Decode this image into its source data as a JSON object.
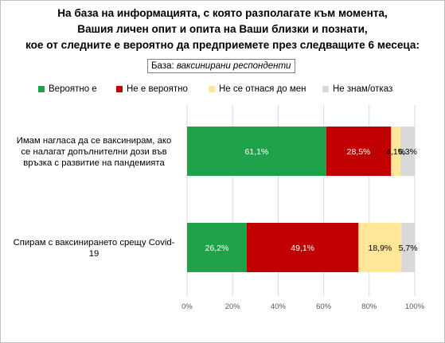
{
  "title_lines": [
    "На база на информацията, с която разполагате към момента,",
    "Вашия личен опит и опита на Ваши близки и познати,",
    "кое от следните е вероятно да предприемете през следващите 6 месеца:"
  ],
  "base": {
    "label": "База:",
    "value": "ваксинирани респонденти"
  },
  "chart_data": {
    "type": "bar",
    "orientation": "horizontal",
    "stacked": true,
    "categories": [
      "Имам нагласа да се ваксинирам, ако се налагат допълнителни дози във връзка с развитие на пандемията",
      "Спирам с ваксинирането срещу Covid-19"
    ],
    "category_lines": [
      [
        "Имам нагласа да се ваксинирам, ако",
        "се налагат допълнителни дози във",
        "връзка с развитие на пандемията"
      ],
      [
        "Спирам с ваксинирането срещу Covid-",
        "19"
      ]
    ],
    "series": [
      {
        "name": "Вероятно е",
        "color": "#1fa34a",
        "label_color": "#ffffff",
        "values": [
          61.1,
          26.2
        ],
        "labels": [
          "61,1%",
          "26,2%"
        ]
      },
      {
        "name": "Не е вероятно",
        "color": "#c00000",
        "label_color": "#ffffff",
        "values": [
          28.5,
          49.1
        ],
        "labels": [
          "28,5%",
          "49,1%"
        ]
      },
      {
        "name": "Не се отнася до мен",
        "color": "#ffe699",
        "label_color": "#000000",
        "values": [
          4.1,
          18.9
        ],
        "labels": [
          "4,1%",
          "18,9%"
        ]
      },
      {
        "name": "Не знам/отказ",
        "color": "#d9d9d9",
        "label_color": "#000000",
        "values": [
          6.3,
          5.7
        ],
        "labels": [
          "6,3%",
          "5,7%"
        ]
      }
    ],
    "xlim": [
      0,
      100
    ],
    "xticks": [
      "0%",
      "20%",
      "40%",
      "60%",
      "80%",
      "100%"
    ],
    "grid": true,
    "legend_position": "top"
  }
}
